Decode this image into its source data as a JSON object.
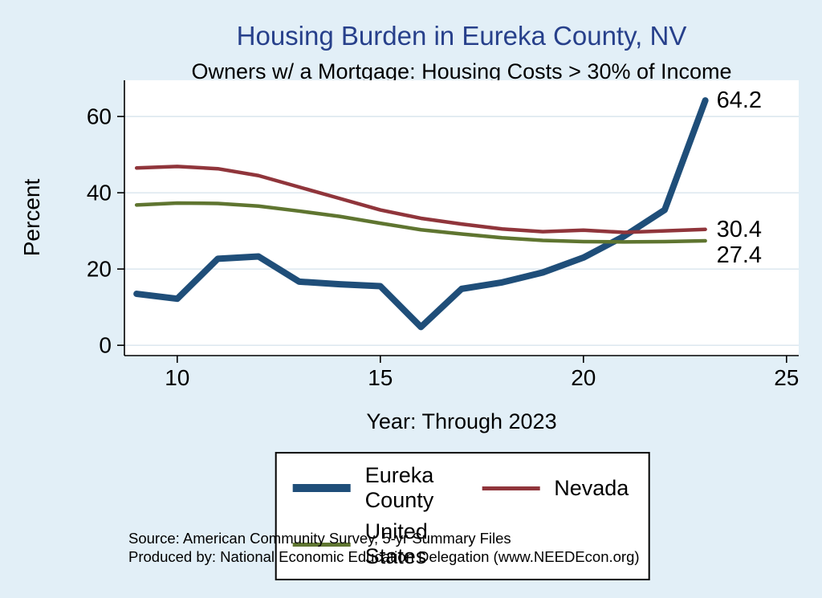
{
  "header": {
    "title": "Housing Burden in Eureka County, NV",
    "subtitle": "Owners w/ a Mortgage: Housing Costs > 30% of Income"
  },
  "axes": {
    "ylabel": "Percent",
    "xlabel": "Year: Through 2023"
  },
  "footer": {
    "source_line1": "Source: American Community Survey, 5-yr Summary Files",
    "source_line2": "Produced by: National Economic Education Delegation (www.NEEDEcon.org)"
  },
  "colors": {
    "background": "#e2eff7",
    "title": "#27408b",
    "plot_background": "#ffffff",
    "grid": "#d9e5ee",
    "axis": "#000000",
    "text": "#000000"
  },
  "chart_data": {
    "type": "line",
    "title": "Housing Burden in Eureka County, NV",
    "subtitle": "Owners w/ a Mortgage: Housing Costs > 30% of Income",
    "xlabel": "Year: Through 2023",
    "ylabel": "Percent",
    "x": [
      9,
      10,
      11,
      12,
      13,
      14,
      15,
      16,
      17,
      18,
      19,
      20,
      21,
      22,
      23
    ],
    "series": [
      {
        "name": "Eureka County",
        "color": "#1f4e79",
        "line_width": 8,
        "values": [
          13.5,
          12.2,
          22.7,
          23.3,
          16.7,
          16.0,
          15.5,
          4.8,
          14.8,
          16.5,
          19.1,
          23.0,
          28.6,
          35.5,
          64.2
        ],
        "end_label": "64.2"
      },
      {
        "name": "Nevada",
        "color": "#90353b",
        "line_width": 4.5,
        "values": [
          46.5,
          46.9,
          46.3,
          44.5,
          41.5,
          38.5,
          35.5,
          33.3,
          31.8,
          30.5,
          29.8,
          30.2,
          29.6,
          30.0,
          30.4
        ],
        "end_label": "30.4"
      },
      {
        "name": "United States",
        "color": "#5f7530",
        "line_width": 4.5,
        "values": [
          36.8,
          37.3,
          37.2,
          36.5,
          35.2,
          33.8,
          32.0,
          30.3,
          29.2,
          28.2,
          27.5,
          27.2,
          27.1,
          27.2,
          27.4
        ],
        "end_label": "27.4"
      }
    ],
    "xticks": [
      10,
      15,
      20,
      25
    ],
    "yticks": [
      0,
      20,
      40,
      60
    ],
    "xlim": [
      8.7,
      25.3
    ],
    "ylim": [
      -2.7,
      69.5
    ],
    "grid": "horizontal",
    "legend_position": "bottom"
  }
}
